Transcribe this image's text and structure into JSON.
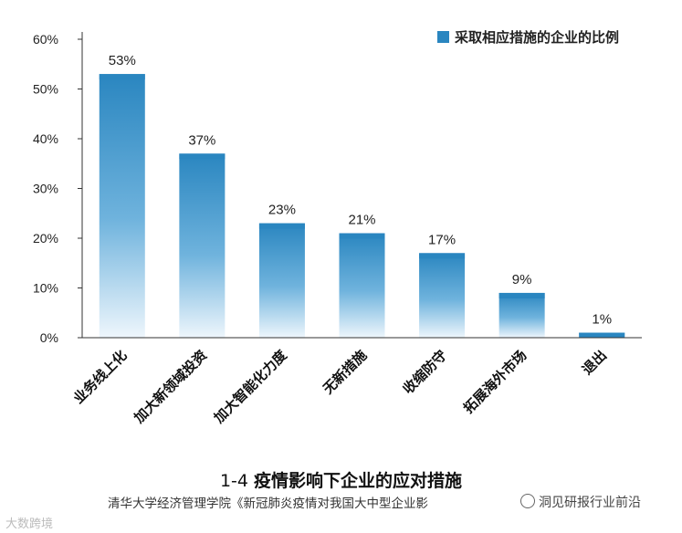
{
  "chart_data": {
    "type": "bar",
    "categories": [
      "业务线上化",
      "加大新领域投资",
      "加大智能化力度",
      "无新措施",
      "收缩防守",
      "拓展海外市场",
      "退出"
    ],
    "values": [
      53,
      37,
      23,
      21,
      17,
      9,
      1
    ],
    "value_labels": [
      "53%",
      "37%",
      "23%",
      "21%",
      "17%",
      "9%",
      "1%"
    ],
    "series": [
      {
        "name": "采取相应措施的企业的比例",
        "values": [
          53,
          37,
          23,
          21,
          17,
          9,
          1
        ]
      }
    ],
    "yticks": [
      "0%",
      "10%",
      "20%",
      "30%",
      "40%",
      "50%",
      "60%"
    ],
    "ylim": [
      0,
      60
    ],
    "grid": false,
    "legend_position": "top-right",
    "bar_color": "#2a86c0"
  },
  "title": {
    "number": "1-4",
    "text": "疫情影响下企业的应对措施"
  },
  "source": "清华大学经济管理学院《新冠肺炎疫情对我国大中型企业影",
  "watermarks": {
    "left": "大数跨境",
    "right": "洞见研报行业前沿"
  }
}
